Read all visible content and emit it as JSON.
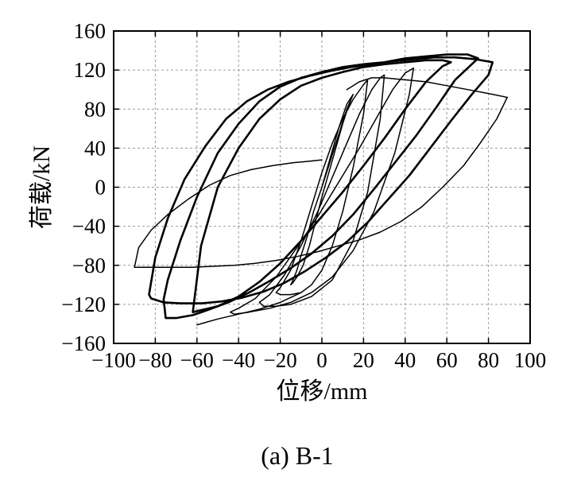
{
  "chart_data": {
    "type": "line",
    "title": "",
    "xlabel": "位移/mm",
    "ylabel": "荷载/kN",
    "caption": "(a) B-1",
    "xlim": [
      -100,
      100
    ],
    "ylim": [
      -160,
      160
    ],
    "xticks": [
      "−100",
      "−80",
      "−60",
      "−40",
      "−20",
      "0",
      "20",
      "40",
      "60",
      "80",
      "100"
    ],
    "yticks": [
      "160",
      "120",
      "80",
      "40",
      "0",
      "−40",
      "−80",
      "−120",
      "−160"
    ],
    "xtick_values": [
      -100,
      -80,
      -60,
      -40,
      -20,
      0,
      20,
      40,
      60,
      80,
      100
    ],
    "ytick_values": [
      160,
      120,
      80,
      40,
      0,
      -40,
      -80,
      -120,
      -160
    ],
    "grid": true,
    "legend": "none",
    "series": [
      {
        "label_weight": "thin",
        "x": [
          0,
          3,
          6,
          9,
          12,
          14,
          15,
          14,
          12,
          10,
          8,
          4,
          0,
          -3,
          -6,
          -9,
          -12,
          -14,
          -15,
          -14,
          -12,
          -10,
          -7,
          -4,
          0,
          4,
          8,
          12,
          15
        ],
        "y": [
          0,
          20,
          40,
          60,
          80,
          90,
          95,
          90,
          78,
          65,
          50,
          20,
          -10,
          -35,
          -60,
          -80,
          -92,
          -98,
          -100,
          -96,
          -85,
          -70,
          -50,
          -25,
          0,
          30,
          60,
          85,
          95
        ]
      },
      {
        "label_weight": "thin",
        "x": [
          22,
          20,
          15,
          10,
          5,
          0,
          -5,
          -10,
          -15,
          -20,
          -22,
          -20,
          -15,
          -10,
          -5,
          0,
          5,
          10,
          15,
          20,
          22
        ],
        "y": [
          110,
          105,
          90,
          70,
          45,
          15,
          -20,
          -55,
          -85,
          -103,
          -108,
          -110,
          -110,
          -108,
          -100,
          -85,
          -60,
          -25,
          20,
          75,
          110
        ]
      },
      {
        "label_weight": "thin",
        "x": [
          30,
          28,
          24,
          18,
          12,
          5,
          -2,
          -10,
          -18,
          -25,
          -30,
          -28,
          -22,
          -15,
          -5,
          5,
          15,
          22,
          28,
          30
        ],
        "y": [
          115,
          112,
          100,
          75,
          45,
          10,
          -25,
          -60,
          -90,
          -110,
          -118,
          -122,
          -122,
          -120,
          -112,
          -95,
          -55,
          -5,
          70,
          115
        ]
      },
      {
        "label_weight": "thin",
        "x": [
          44,
          40,
          34,
          26,
          18,
          8,
          -2,
          -12,
          -22,
          -32,
          -40,
          -44,
          -42,
          -35,
          -25,
          -15,
          -5,
          5,
          15,
          25,
          35,
          42,
          44
        ],
        "y": [
          122,
          117,
          100,
          70,
          40,
          5,
          -30,
          -62,
          -92,
          -114,
          -124,
          -128,
          -130,
          -128,
          -124,
          -118,
          -108,
          -92,
          -65,
          -25,
          35,
          95,
          122
        ]
      },
      {
        "label_weight": "bold",
        "x": [
          62,
          58,
          50,
          40,
          30,
          20,
          10,
          0,
          -10,
          -20,
          -30,
          -40,
          -50,
          -58,
          -62,
          -58,
          -50,
          -40,
          -30,
          -20,
          -10,
          0,
          10,
          20,
          30,
          40,
          50,
          58,
          62
        ],
        "y": [
          128,
          124,
          108,
          80,
          50,
          22,
          -5,
          -30,
          -55,
          -78,
          -97,
          -112,
          -122,
          -126,
          -128,
          -60,
          0,
          40,
          70,
          90,
          104,
          112,
          118,
          123,
          126,
          128,
          130,
          130,
          128
        ]
      },
      {
        "label_weight": "bold",
        "x": [
          75,
          72,
          64,
          55,
          45,
          35,
          25,
          15,
          5,
          -5,
          -15,
          -25,
          -35,
          -45,
          -55,
          -62,
          -70,
          -75,
          -76,
          -74,
          -68,
          -60,
          -50,
          -40,
          -30,
          -20,
          -10,
          0,
          10,
          20,
          30,
          40,
          50,
          60,
          70,
          75
        ],
        "y": [
          132,
          126,
          110,
          82,
          52,
          25,
          -2,
          -28,
          -50,
          -68,
          -83,
          -96,
          -108,
          -118,
          -126,
          -131,
          -134,
          -134,
          -115,
          -95,
          -55,
          -10,
          35,
          65,
          88,
          103,
          112,
          118,
          123,
          126,
          128,
          132,
          134,
          136,
          136,
          132
        ]
      },
      {
        "label_weight": "bold",
        "x": [
          82,
          80,
          72,
          62,
          52,
          42,
          32,
          22,
          12,
          2,
          -8,
          -18,
          -28,
          -38,
          -48,
          -58,
          -68,
          -76,
          -82,
          -83,
          -80,
          -74,
          -66,
          -56,
          -46,
          -36,
          -26,
          -16,
          -6,
          4,
          14,
          24,
          34,
          44,
          54,
          64,
          74,
          82
        ],
        "y": [
          128,
          115,
          95,
          68,
          40,
          12,
          -12,
          -36,
          -56,
          -72,
          -86,
          -98,
          -107,
          -113,
          -117,
          -119,
          -119,
          -118,
          -114,
          -110,
          -72,
          -32,
          8,
          42,
          70,
          88,
          100,
          108,
          114,
          119,
          123,
          126,
          129,
          131,
          133,
          133,
          131,
          128
        ]
      },
      {
        "label_weight": "thin",
        "x": [
          89,
          84,
          76,
          68,
          58,
          48,
          38,
          28,
          18,
          8,
          -2,
          -12,
          -22,
          -32,
          -42,
          -52,
          -62,
          -72,
          -80,
          -86,
          -90,
          -88,
          -82,
          -74,
          -64,
          -54,
          -44,
          -34,
          -24,
          -14,
          -4,
          0
        ],
        "y": [
          92,
          70,
          45,
          22,
          0,
          -20,
          -35,
          -46,
          -54,
          -60,
          -66,
          -71,
          -75,
          -78,
          -80,
          -81,
          -82,
          -82,
          -82,
          -82,
          -82,
          -62,
          -44,
          -28,
          -12,
          2,
          12,
          18,
          22,
          25,
          27,
          28
        ]
      },
      {
        "label_weight": "thin",
        "x": [
          89,
          80,
          70,
          60,
          50,
          40,
          30,
          24,
          18,
          12
        ],
        "y": [
          92,
          96,
          100,
          104,
          108,
          110,
          112,
          112,
          108,
          100
        ]
      },
      {
        "label_weight": "thin",
        "x": [
          -60,
          -50,
          -40,
          -30,
          -20,
          -10
        ],
        "y": [
          -141,
          -135,
          -130,
          -125,
          -118,
          -108
        ]
      }
    ]
  }
}
